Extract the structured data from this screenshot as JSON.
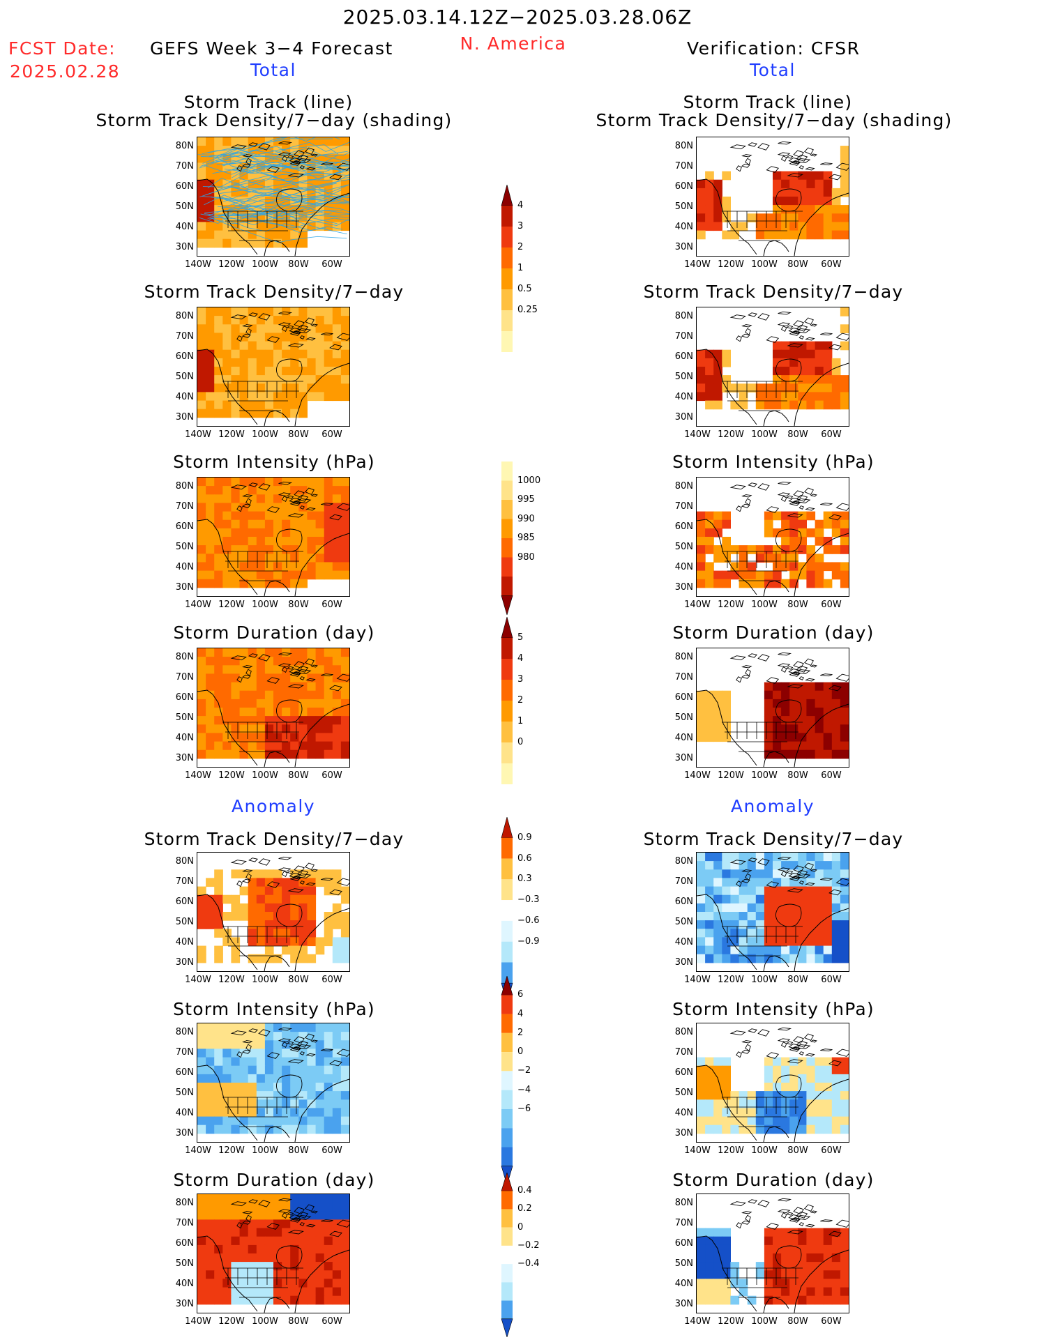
{
  "header": {
    "period": "2025.03.14.12Z−2025.03.28.06Z",
    "fcst_label": "FCST Date:",
    "fcst_date": "2025.02.28",
    "model": "GEFS Week 3−4 Forecast",
    "region": "N. America",
    "verification": "Verification: CFSR"
  },
  "sections": {
    "total": "Total",
    "anomaly": "Anomaly"
  },
  "panel_titles": {
    "track_line": "Storm Track (line)",
    "track_shading": "Storm Track Density/7−day (shading)",
    "density": "Storm Track Density/7−day",
    "intensity": "Storm Intensity (hPa)",
    "duration": "Storm Duration (day)"
  },
  "axes": {
    "lat": [
      "80N",
      "70N",
      "60N",
      "50N",
      "40N",
      "30N"
    ],
    "lon": [
      "140W",
      "120W",
      "100W",
      "80W",
      "60W"
    ]
  },
  "colorbars": {
    "density_total": [
      "4",
      "3",
      "2",
      "1",
      "0.5",
      "0.25"
    ],
    "intensity_total": [
      "1000",
      "995",
      "990",
      "985",
      "980"
    ],
    "duration_total": [
      "5",
      "4",
      "3",
      "2",
      "1",
      "0"
    ],
    "density_anom": [
      "0.9",
      "0.6",
      "0.3",
      "−0.3",
      "−0.6",
      "−0.9"
    ],
    "intensity_anom": [
      "6",
      "4",
      "2",
      "0",
      "−2",
      "−4",
      "−6"
    ],
    "duration_anom": [
      "0.4",
      "0.2",
      "0",
      "−0.2",
      "−0.4"
    ]
  },
  "colors": {
    "warm": [
      "#fff7b3",
      "#ffe38a",
      "#ffc040",
      "#ff9a00",
      "#ff6a00",
      "#ef3a10",
      "#c01800",
      "#8c0000"
    ],
    "cool": [
      "#dff6ff",
      "#b4e8fa",
      "#7ccbf5",
      "#4aa2ee",
      "#2a78e0",
      "#1550c8"
    ],
    "track_lines": "#2aa4e8"
  }
}
